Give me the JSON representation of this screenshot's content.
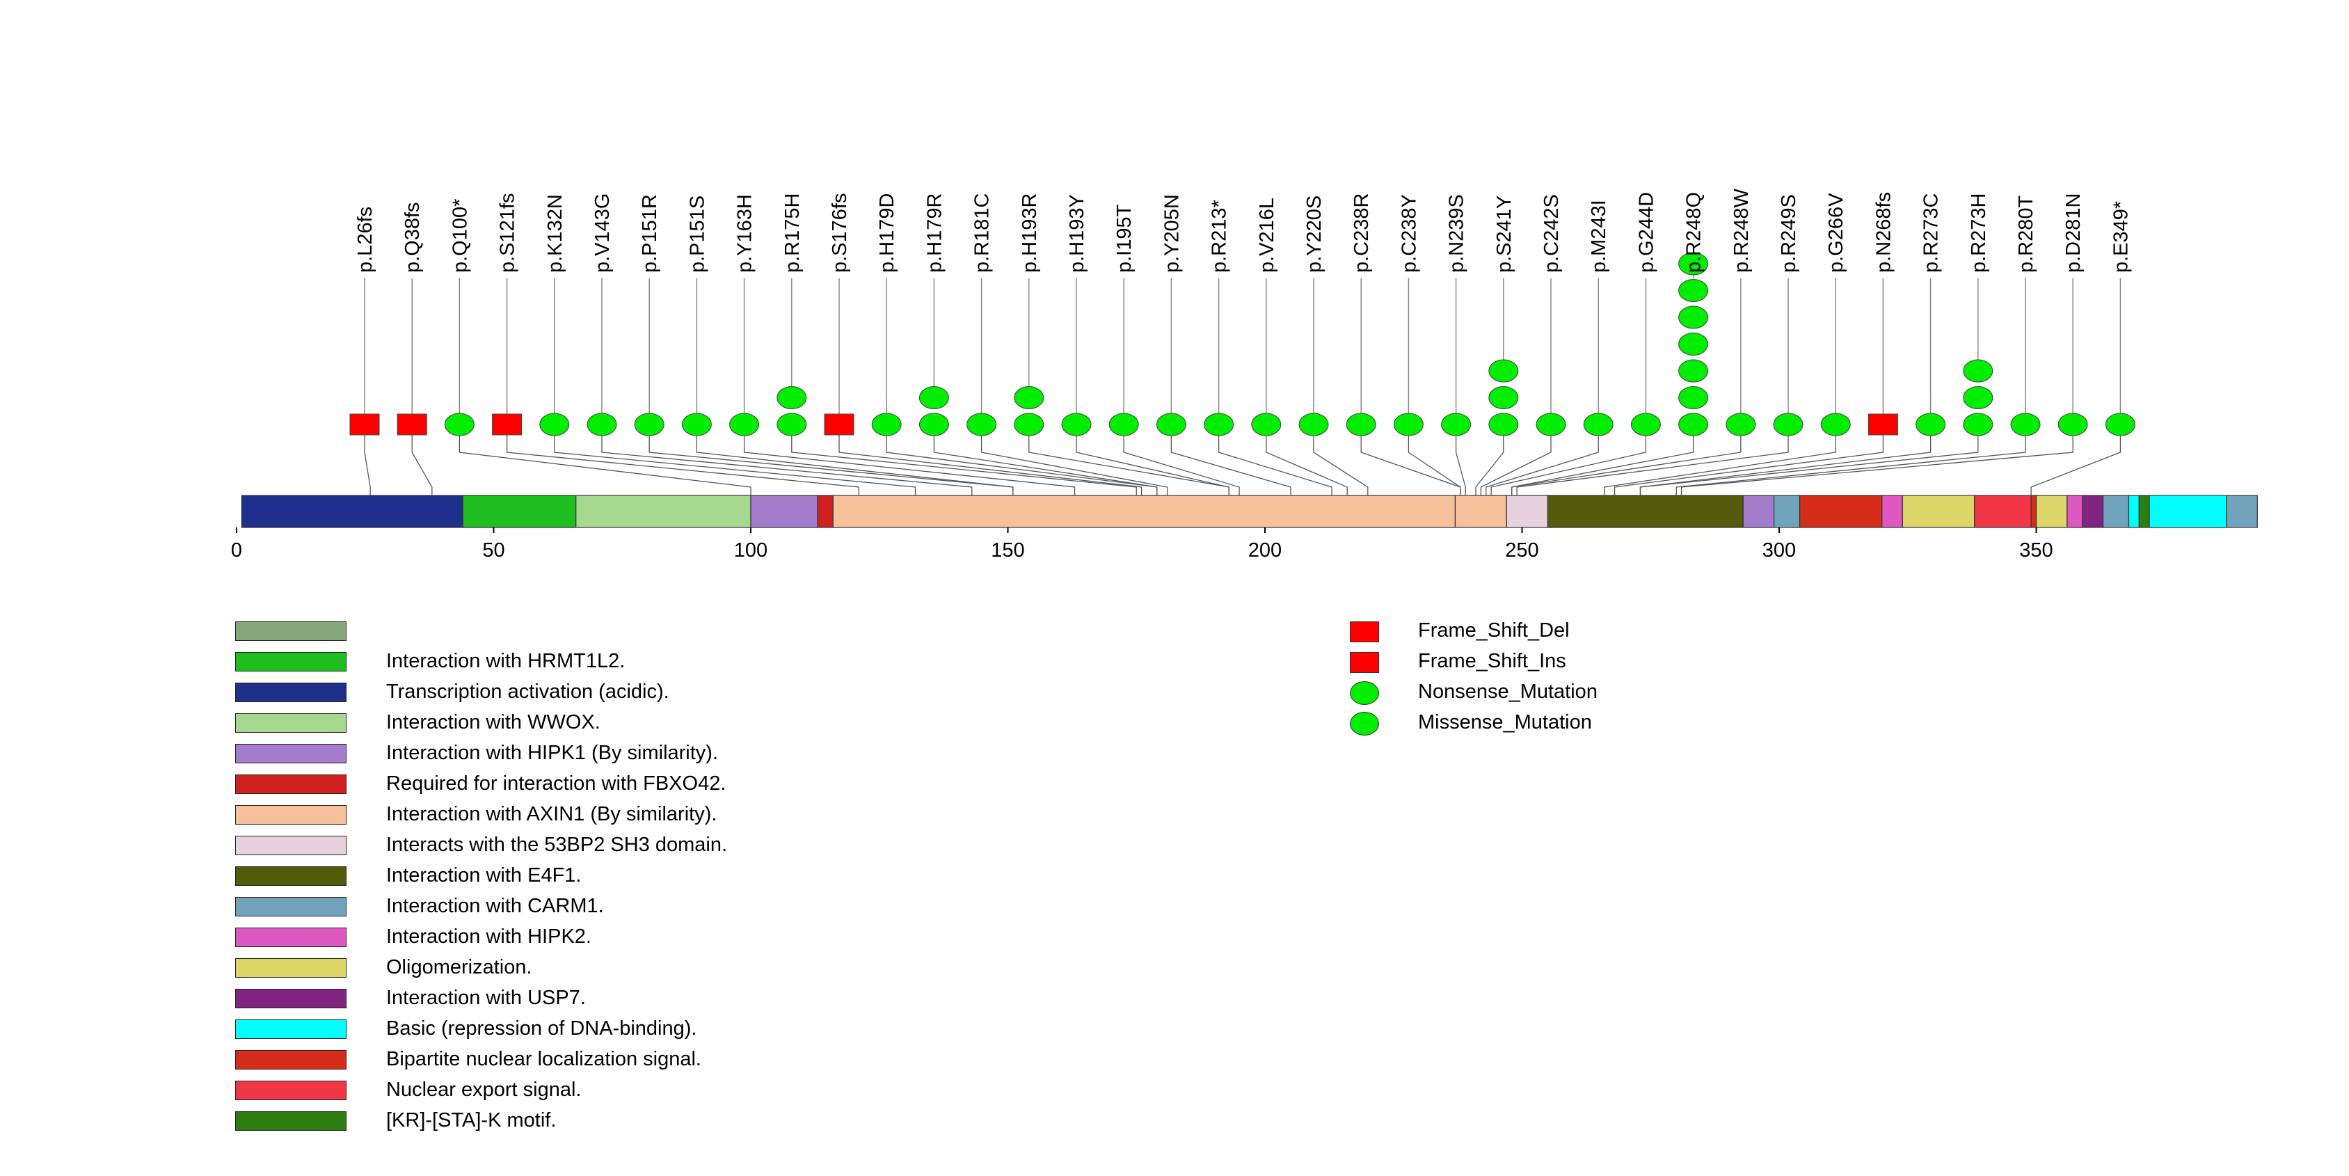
{
  "chart_data": {
    "type": "lollipop",
    "protein_length": 393,
    "x_axis": {
      "ticks": [
        0,
        50,
        100,
        150,
        200,
        250,
        300,
        350
      ]
    },
    "colors": {
      "Frame_Shift_Del": "#ff0000",
      "Frame_Shift_Ins": "#ff0000",
      "Nonsense_Mutation": "#00ee00",
      "Missense_Mutation": "#00ee00"
    },
    "domains": [
      {
        "start": 1,
        "end": 44,
        "color": "#1f2f8c"
      },
      {
        "start": 44,
        "end": 66,
        "color": "#1fbe1f"
      },
      {
        "start": 66,
        "end": 100,
        "color": "#a6d98f"
      },
      {
        "start": 100,
        "end": 113,
        "color": "#a37dcb"
      },
      {
        "start": 113,
        "end": 116,
        "color": "#d01f1f"
      },
      {
        "start": 116,
        "end": 237,
        "color": "#f7c09c"
      },
      {
        "start": 237,
        "end": 247,
        "color": "#f7c09c"
      },
      {
        "start": 247,
        "end": 255,
        "color": "#e6d1df"
      },
      {
        "start": 255,
        "end": 293,
        "color": "#545b0a"
      },
      {
        "start": 293,
        "end": 299,
        "color": "#a37dcb"
      },
      {
        "start": 299,
        "end": 304,
        "color": "#72a3bc"
      },
      {
        "start": 304,
        "end": 320,
        "color": "#d62c1a"
      },
      {
        "start": 320,
        "end": 324,
        "color": "#de58c2"
      },
      {
        "start": 324,
        "end": 338,
        "color": "#dbd667"
      },
      {
        "start": 338,
        "end": 349,
        "color": "#f13746"
      },
      {
        "start": 349,
        "end": 350,
        "color": "#d62c1a"
      },
      {
        "start": 350,
        "end": 356,
        "color": "#dbd667"
      },
      {
        "start": 356,
        "end": 359,
        "color": "#de58c2"
      },
      {
        "start": 359,
        "end": 363,
        "color": "#822581"
      },
      {
        "start": 363,
        "end": 368,
        "color": "#72a3bc"
      },
      {
        "start": 368,
        "end": 370,
        "color": "#00ffff"
      },
      {
        "start": 370,
        "end": 372,
        "color": "#2e7d11"
      },
      {
        "start": 372,
        "end": 387,
        "color": "#00ffff"
      },
      {
        "start": 387,
        "end": 393,
        "color": "#72a3bc"
      }
    ],
    "mutations": [
      {
        "label": "p.L26fs",
        "pos": 26,
        "count": 1,
        "type": "Frame_Shift_Del",
        "shape": "rect"
      },
      {
        "label": "p.Q38fs",
        "pos": 38,
        "count": 1,
        "type": "Frame_Shift_Ins",
        "shape": "rect"
      },
      {
        "label": "p.Q100*",
        "pos": 100,
        "count": 1,
        "type": "Nonsense_Mutation",
        "shape": "ellipse"
      },
      {
        "label": "p.S121fs",
        "pos": 121,
        "count": 1,
        "type": "Frame_Shift_Del",
        "shape": "rect"
      },
      {
        "label": "p.K132N",
        "pos": 132,
        "count": 1,
        "type": "Missense_Mutation",
        "shape": "ellipse"
      },
      {
        "label": "p.V143G",
        "pos": 143,
        "count": 1,
        "type": "Missense_Mutation",
        "shape": "ellipse"
      },
      {
        "label": "p.P151R",
        "pos": 151,
        "count": 1,
        "type": "Missense_Mutation",
        "shape": "ellipse"
      },
      {
        "label": "p.P151S",
        "pos": 151,
        "count": 1,
        "type": "Missense_Mutation",
        "shape": "ellipse"
      },
      {
        "label": "p.Y163H",
        "pos": 163,
        "count": 1,
        "type": "Missense_Mutation",
        "shape": "ellipse"
      },
      {
        "label": "p.R175H",
        "pos": 175,
        "count": 2,
        "type": "Missense_Mutation",
        "shape": "ellipse"
      },
      {
        "label": "p.S176fs",
        "pos": 176,
        "count": 1,
        "type": "Frame_Shift_Del",
        "shape": "rect"
      },
      {
        "label": "p.H179D",
        "pos": 179,
        "count": 1,
        "type": "Missense_Mutation",
        "shape": "ellipse"
      },
      {
        "label": "p.H179R",
        "pos": 179,
        "count": 2,
        "type": "Missense_Mutation",
        "shape": "ellipse"
      },
      {
        "label": "p.R181C",
        "pos": 181,
        "count": 1,
        "type": "Missense_Mutation",
        "shape": "ellipse"
      },
      {
        "label": "p.H193R",
        "pos": 193,
        "count": 2,
        "type": "Missense_Mutation",
        "shape": "ellipse"
      },
      {
        "label": "p.H193Y",
        "pos": 193,
        "count": 1,
        "type": "Missense_Mutation",
        "shape": "ellipse"
      },
      {
        "label": "p.I195T",
        "pos": 195,
        "count": 1,
        "type": "Missense_Mutation",
        "shape": "ellipse"
      },
      {
        "label": "p.Y205N",
        "pos": 205,
        "count": 1,
        "type": "Missense_Mutation",
        "shape": "ellipse"
      },
      {
        "label": "p.R213*",
        "pos": 213,
        "count": 1,
        "type": "Nonsense_Mutation",
        "shape": "ellipse"
      },
      {
        "label": "p.V216L",
        "pos": 216,
        "count": 1,
        "type": "Missense_Mutation",
        "shape": "ellipse"
      },
      {
        "label": "p.Y220S",
        "pos": 220,
        "count": 1,
        "type": "Missense_Mutation",
        "shape": "ellipse"
      },
      {
        "label": "p.C238R",
        "pos": 238,
        "count": 1,
        "type": "Missense_Mutation",
        "shape": "ellipse"
      },
      {
        "label": "p.C238Y",
        "pos": 238,
        "count": 1,
        "type": "Missense_Mutation",
        "shape": "ellipse"
      },
      {
        "label": "p.N239S",
        "pos": 239,
        "count": 1,
        "type": "Missense_Mutation",
        "shape": "ellipse"
      },
      {
        "label": "p.S241Y",
        "pos": 241,
        "count": 3,
        "type": "Missense_Mutation",
        "shape": "ellipse"
      },
      {
        "label": "p.C242S",
        "pos": 242,
        "count": 1,
        "type": "Missense_Mutation",
        "shape": "ellipse"
      },
      {
        "label": "p.M243I",
        "pos": 243,
        "count": 1,
        "type": "Missense_Mutation",
        "shape": "ellipse"
      },
      {
        "label": "p.G244D",
        "pos": 244,
        "count": 1,
        "type": "Missense_Mutation",
        "shape": "ellipse"
      },
      {
        "label": "p.R248Q",
        "pos": 248,
        "count": 7,
        "type": "Missense_Mutation",
        "shape": "ellipse"
      },
      {
        "label": "p.R248W",
        "pos": 248,
        "count": 1,
        "type": "Missense_Mutation",
        "shape": "ellipse"
      },
      {
        "label": "p.R249S",
        "pos": 249,
        "count": 1,
        "type": "Missense_Mutation",
        "shape": "ellipse"
      },
      {
        "label": "p.G266V",
        "pos": 266,
        "count": 1,
        "type": "Missense_Mutation",
        "shape": "ellipse"
      },
      {
        "label": "p.N268fs",
        "pos": 268,
        "count": 1,
        "type": "Frame_Shift_Del",
        "shape": "rect"
      },
      {
        "label": "p.R273C",
        "pos": 273,
        "count": 1,
        "type": "Missense_Mutation",
        "shape": "ellipse"
      },
      {
        "label": "p.R273H",
        "pos": 273,
        "count": 3,
        "type": "Missense_Mutation",
        "shape": "ellipse"
      },
      {
        "label": "p.R280T",
        "pos": 280,
        "count": 1,
        "type": "Missense_Mutation",
        "shape": "ellipse"
      },
      {
        "label": "p.D281N",
        "pos": 281,
        "count": 1,
        "type": "Missense_Mutation",
        "shape": "ellipse"
      },
      {
        "label": "p.E349*",
        "pos": 349,
        "count": 1,
        "type": "Nonsense_Mutation",
        "shape": "ellipse"
      }
    ]
  },
  "domain_legend": [
    {
      "label": "",
      "color": "#87a87a"
    },
    {
      "label": "Interaction with HRMT1L2.",
      "color": "#1fbe1f"
    },
    {
      "label": "Transcription activation (acidic).",
      "color": "#1f2f8c"
    },
    {
      "label": "Interaction with WWOX.",
      "color": "#a6d98f"
    },
    {
      "label": "Interaction with HIPK1 (By similarity).",
      "color": "#a37dcb"
    },
    {
      "label": "Required for interaction with FBXO42.",
      "color": "#d01f1f"
    },
    {
      "label": "Interaction with AXIN1 (By similarity).",
      "color": "#f7c09c"
    },
    {
      "label": "Interacts with the 53BP2 SH3 domain.",
      "color": "#e6d1df"
    },
    {
      "label": "Interaction with E4F1.",
      "color": "#545b0a"
    },
    {
      "label": "Interaction with CARM1.",
      "color": "#72a3bc"
    },
    {
      "label": "Interaction with HIPK2.",
      "color": "#de58c2"
    },
    {
      "label": "Oligomerization.",
      "color": "#dbd667"
    },
    {
      "label": "Interaction with USP7.",
      "color": "#822581"
    },
    {
      "label": "Basic (repression of DNA-binding).",
      "color": "#00ffff"
    },
    {
      "label": "Bipartite nuclear localization signal.",
      "color": "#d62c1a"
    },
    {
      "label": "Nuclear export signal.",
      "color": "#f13746"
    },
    {
      "label": "[KR]-[STA]-K motif.",
      "color": "#2e7d11"
    }
  ],
  "mutation_legend": [
    {
      "label": "Frame_Shift_Del",
      "color": "#ff0000",
      "shape": "rect"
    },
    {
      "label": "Frame_Shift_Ins",
      "color": "#ff0000",
      "shape": "rect"
    },
    {
      "label": "Nonsense_Mutation",
      "color": "#00ee00",
      "shape": "ellipse"
    },
    {
      "label": "Missense_Mutation",
      "color": "#00ee00",
      "shape": "ellipse"
    }
  ]
}
